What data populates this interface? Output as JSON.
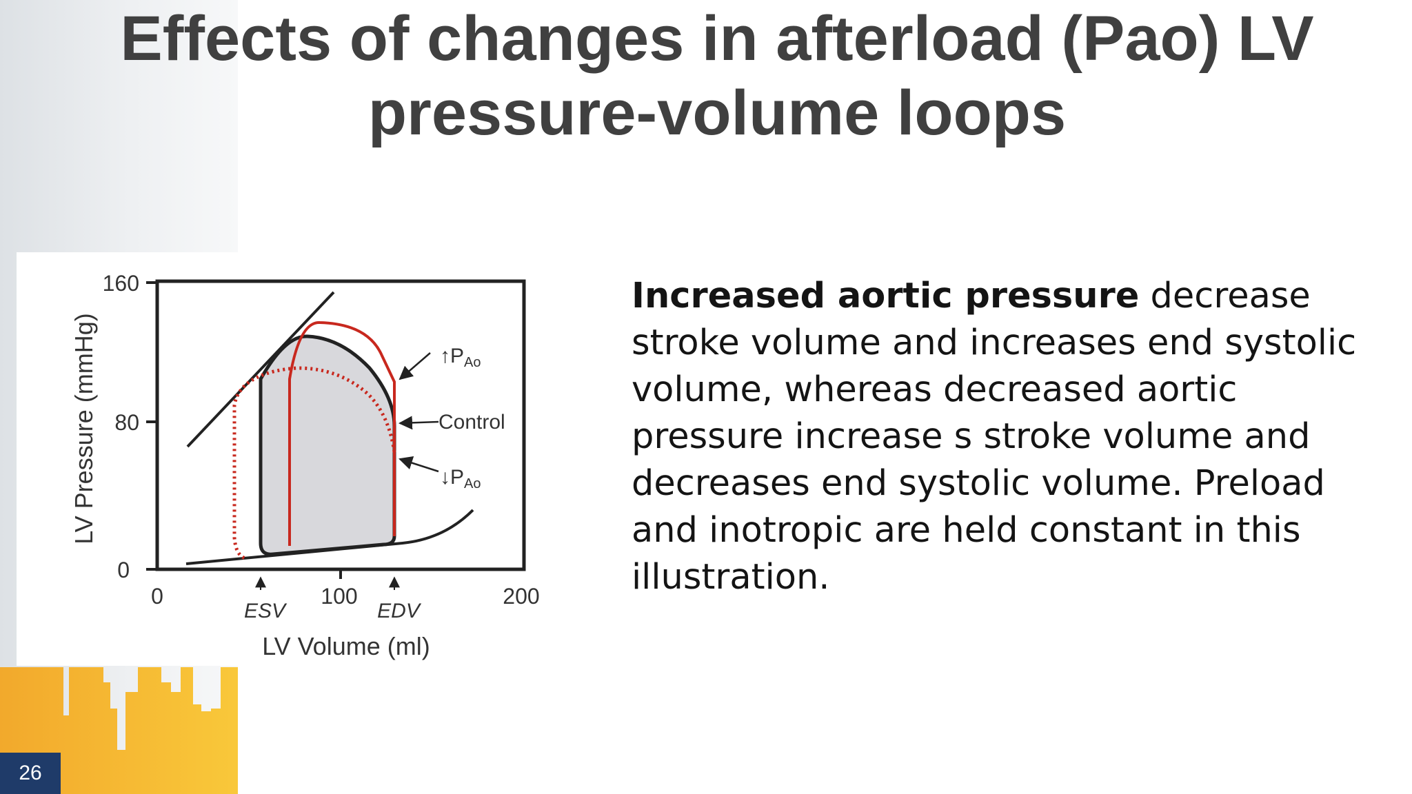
{
  "slide": {
    "title": "Effects of changes in afterload (Pao) LV pressure-volume loops",
    "page_number": "26",
    "accent_colors": {
      "navy": "#1f3b69",
      "gold": "#f5b533",
      "red_loop": "#c8281e"
    }
  },
  "description": {
    "bold": "Increased aortic pressure",
    "rest": " decrease stroke volume and increases end systolic volume, whereas decreased aortic pressure increase s stroke volume and decreases end systolic volume. Preload and inotropic are held constant in this illustration."
  },
  "figure": {
    "y_axis_label": "LV Pressure (mmHg)",
    "x_axis_label": "LV Volume (ml)",
    "y_ticks": [
      "0",
      "80",
      "160"
    ],
    "x_ticks": [
      "0",
      "100",
      "200"
    ],
    "esv_label": "ESV",
    "edv_label": "EDV",
    "label_up": "↑P",
    "label_control": "Control",
    "label_down": "↓P",
    "label_sub": "Ao"
  }
}
